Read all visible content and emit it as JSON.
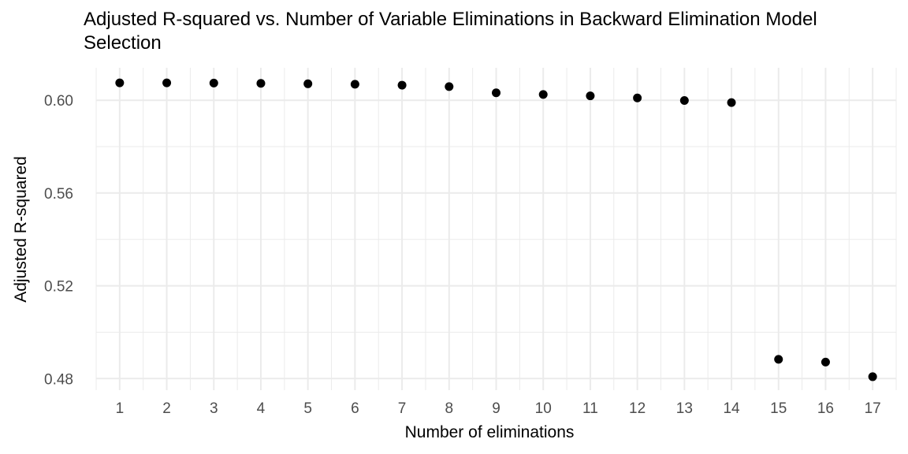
{
  "chart_data": {
    "type": "scatter",
    "title": "Adjusted R-squared vs. Number of Variable Eliminations in Backward Elimination Model Selection",
    "xlabel": "Number of eliminations",
    "ylabel": "Adjusted R-squared",
    "x": [
      1,
      2,
      3,
      4,
      5,
      6,
      7,
      8,
      9,
      10,
      11,
      12,
      13,
      14,
      15,
      16,
      17
    ],
    "y": [
      0.6075,
      0.6075,
      0.6074,
      0.6073,
      0.6071,
      0.6069,
      0.6065,
      0.6059,
      0.6032,
      0.6025,
      0.6019,
      0.601,
      0.5999,
      0.599,
      0.4883,
      0.4871,
      0.4808
    ],
    "xlim": [
      0.5,
      17.5
    ],
    "ylim": [
      0.475,
      0.614
    ],
    "x_ticks": [
      1,
      2,
      3,
      4,
      5,
      6,
      7,
      8,
      9,
      10,
      11,
      12,
      13,
      14,
      15,
      16,
      17
    ],
    "y_ticks": [
      0.48,
      0.52,
      0.56,
      0.6
    ],
    "y_tick_labels": [
      "0.48",
      "0.52",
      "0.56",
      "0.60"
    ],
    "grid": true,
    "legend": "none",
    "point_color": "#000000",
    "grid_color": "#ebebeb"
  }
}
